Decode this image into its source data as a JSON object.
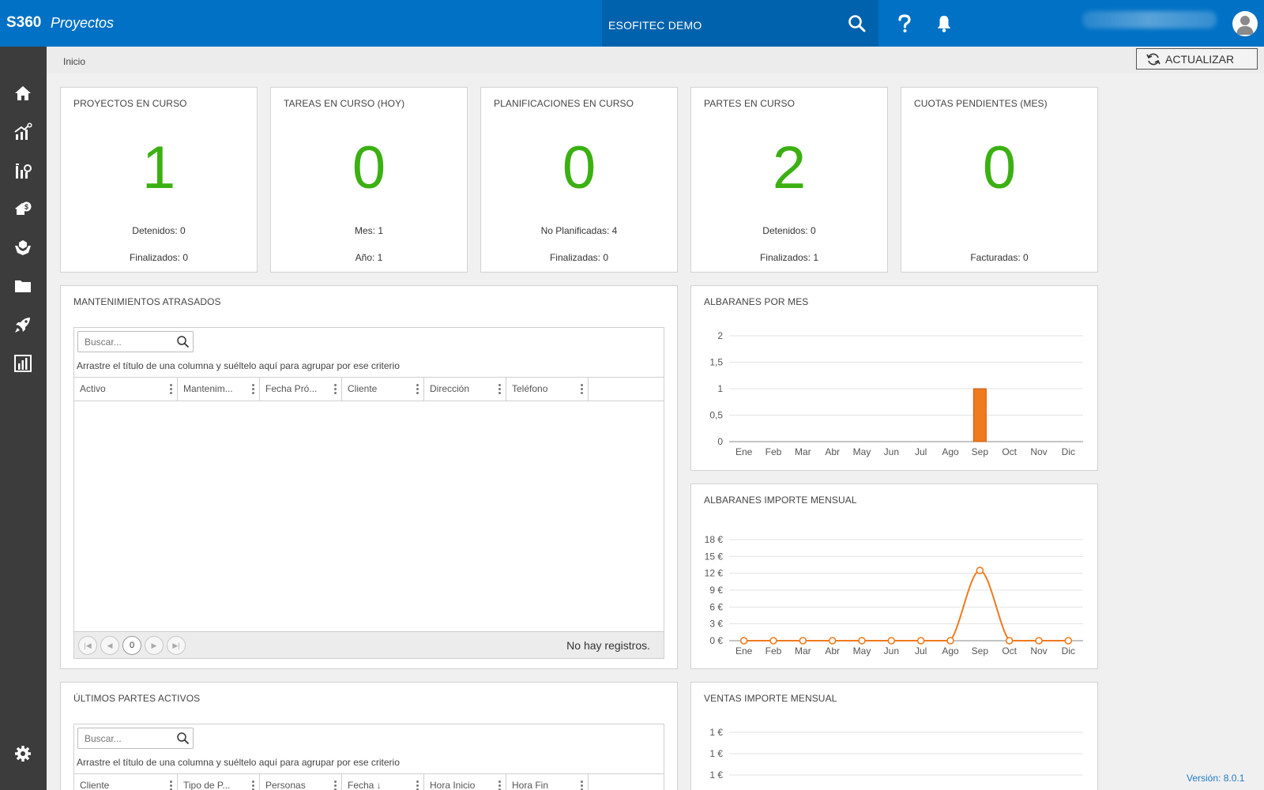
{
  "app": {
    "brand": "S360",
    "module": "Proyectos"
  },
  "header": {
    "company": "ESOFITEC DEMO"
  },
  "breadcrumb": "Inicio",
  "refresh_label": "ACTUALIZAR",
  "stats": [
    {
      "title": "PROYECTOS EN CURSO",
      "value": "1",
      "line1": "Detenidos: 0",
      "line2": "Finalizados: 0"
    },
    {
      "title": "TAREAS EN CURSO (HOY)",
      "value": "0",
      "line1": "Mes: 1",
      "line2": "Año: 1"
    },
    {
      "title": "PLANIFICACIONES EN CURSO",
      "value": "0",
      "line1": "No Planificadas: 4",
      "line2": "Finalizadas: 0"
    },
    {
      "title": "PARTES EN CURSO",
      "value": "2",
      "line1": "Detenidos: 0",
      "line2": "Finalizados: 1"
    },
    {
      "title": "CUOTAS PENDIENTES (MES)",
      "value": "0",
      "line1": "",
      "line2": "Facturadas: 0"
    }
  ],
  "maintenance": {
    "title": "MANTENIMIENTOS ATRASADOS",
    "search_placeholder": "Buscar...",
    "group_hint": "Arrastre el título de una columna y suéltelo aquí para agrupar por ese criterio",
    "columns": [
      "Activo",
      "Mantenim...",
      "Fecha Pró...",
      "Cliente",
      "Dirección",
      "Teléfono"
    ],
    "page": "0",
    "empty": "No hay registros."
  },
  "partes": {
    "title": "ÚLTIMOS PARTES ACTIVOS",
    "search_placeholder": "Buscar...",
    "group_hint": "Arrastre el título de una columna y suéltelo aquí para agrupar por ese criterio",
    "columns": [
      "Cliente",
      "Tipo de P...",
      "Personas",
      "Fecha ↓",
      "Hora Inicio",
      "Hora Fin"
    ]
  },
  "charts": {
    "albaranes_mes_title": "ALBARANES POR MES",
    "albaranes_importe_title": "ALBARANES IMPORTE MENSUAL",
    "ventas_importe_title": "VENTAS IMPORTE MENSUAL"
  },
  "chart_data": [
    {
      "type": "bar",
      "title": "ALBARANES POR MES",
      "categories": [
        "Ene",
        "Feb",
        "Mar",
        "Abr",
        "May",
        "Jun",
        "Jul",
        "Ago",
        "Sep",
        "Oct",
        "Nov",
        "Dic"
      ],
      "values": [
        0,
        0,
        0,
        0,
        0,
        0,
        0,
        0,
        1,
        0,
        0,
        0
      ],
      "ylim": [
        0,
        2
      ],
      "yticks": [
        "0",
        "0,5",
        "1",
        "1,5",
        "2"
      ],
      "color": "#f07a1e"
    },
    {
      "type": "line",
      "title": "ALBARANES IMPORTE MENSUAL",
      "categories": [
        "Ene",
        "Feb",
        "Mar",
        "Abr",
        "May",
        "Jun",
        "Jul",
        "Ago",
        "Sep",
        "Oct",
        "Nov",
        "Dic"
      ],
      "values": [
        0,
        0,
        0,
        0,
        0,
        0,
        0,
        0,
        12.5,
        0,
        0,
        0
      ],
      "ylim": [
        0,
        18
      ],
      "yticks": [
        "0 €",
        "3 €",
        "6 €",
        "9 €",
        "12 €",
        "15 €",
        "18 €"
      ],
      "color": "#f07a1e"
    },
    {
      "type": "line",
      "title": "VENTAS IMPORTE MENSUAL",
      "categories": [],
      "values": [],
      "yticks_visible": [
        "1 €",
        "1 €",
        "1 €"
      ]
    }
  ],
  "footer": {
    "version": "Versión: 8.0.1"
  }
}
